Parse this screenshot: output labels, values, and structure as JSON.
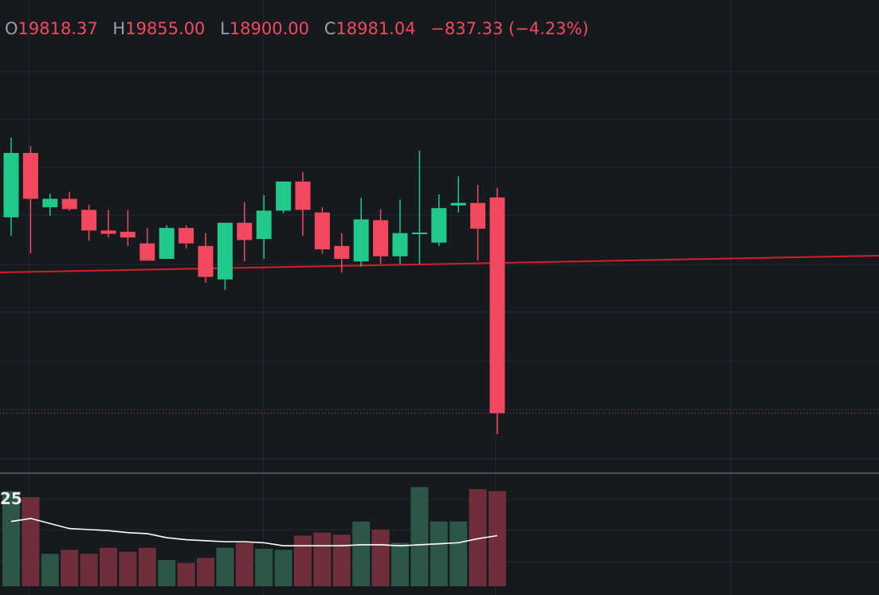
{
  "legend": {
    "open_key": "O",
    "open": "19818.37",
    "high_key": "H",
    "high": "19855.00",
    "low_key": "L",
    "low": "18900.00",
    "close_key": "C",
    "close": "18981.04",
    "change": "−837.33 (−4.23%)"
  },
  "volume_label": "25",
  "colors": {
    "background": "#161a1f",
    "grid": "#232730",
    "up": "#22c98a",
    "down": "#f2495e",
    "up_volume": "#2c5646",
    "down_volume": "#6e2f3a",
    "trendline": "#d61f24",
    "last_price_line": "#f2495e",
    "volume_ma": "#ffffff",
    "separator": "#5b606a"
  },
  "chart_data": {
    "type": "candlestick",
    "price_range": [
      18850,
      20100
    ],
    "candles": [
      {
        "o": 19741,
        "h": 20050,
        "l": 19670,
        "c": 19991,
        "v": 94
      },
      {
        "o": 19991,
        "h": 20017,
        "l": 19601,
        "c": 19813,
        "v": 88
      },
      {
        "o": 19780,
        "h": 19833,
        "l": 19747,
        "c": 19813,
        "v": 32
      },
      {
        "o": 19813,
        "h": 19840,
        "l": 19767,
        "c": 19773,
        "v": 36
      },
      {
        "o": 19770,
        "h": 19790,
        "l": 19650,
        "c": 19690,
        "v": 32
      },
      {
        "o": 19690,
        "h": 19770,
        "l": 19663,
        "c": 19677,
        "v": 38
      },
      {
        "o": 19685,
        "h": 19770,
        "l": 19630,
        "c": 19663,
        "v": 34
      },
      {
        "o": 19640,
        "h": 19700,
        "l": 19580,
        "c": 19573,
        "v": 38
      },
      {
        "o": 19580,
        "h": 19710,
        "l": 19580,
        "c": 19700,
        "v": 26
      },
      {
        "o": 19700,
        "h": 19710,
        "l": 19620,
        "c": 19640,
        "v": 23
      },
      {
        "o": 19630,
        "h": 19680,
        "l": 19487,
        "c": 19510,
        "v": 28
      },
      {
        "o": 19500,
        "h": 19720,
        "l": 19460,
        "c": 19720,
        "v": 38
      },
      {
        "o": 19720,
        "h": 19800,
        "l": 19570,
        "c": 19653,
        "v": 43
      },
      {
        "o": 19657,
        "h": 19827,
        "l": 19580,
        "c": 19767,
        "v": 37
      },
      {
        "o": 19767,
        "h": 19880,
        "l": 19757,
        "c": 19880,
        "v": 36
      },
      {
        "o": 19880,
        "h": 19917,
        "l": 19670,
        "c": 19770,
        "v": 50
      },
      {
        "o": 19760,
        "h": 19780,
        "l": 19600,
        "c": 19617,
        "v": 53
      },
      {
        "o": 19630,
        "h": 19680,
        "l": 19527,
        "c": 19580,
        "v": 51
      },
      {
        "o": 19570,
        "h": 19817,
        "l": 19550,
        "c": 19733,
        "v": 64
      },
      {
        "o": 19730,
        "h": 19773,
        "l": 19560,
        "c": 19590,
        "v": 56
      },
      {
        "o": 19590,
        "h": 19810,
        "l": 19560,
        "c": 19680,
        "v": 43
      },
      {
        "o": 19680,
        "h": 20000,
        "l": 19560,
        "c": 19682,
        "v": 98
      },
      {
        "o": 19643,
        "h": 19830,
        "l": 19630,
        "c": 19777,
        "v": 64
      },
      {
        "o": 19787,
        "h": 19900,
        "l": 19760,
        "c": 19797,
        "v": 64
      },
      {
        "o": 19797,
        "h": 19867,
        "l": 19573,
        "c": 19697,
        "v": 96
      },
      {
        "o": 19818.37,
        "h": 19855,
        "l": 18900,
        "c": 18981.04,
        "v": 94
      }
    ],
    "volume_ma": [
      64,
      67,
      62,
      57,
      56,
      55,
      53,
      52,
      48,
      46,
      45,
      44,
      44,
      43,
      40,
      40,
      40,
      40,
      41,
      41,
      40,
      41,
      42,
      43,
      47,
      50
    ],
    "volume_range": [
      0,
      100
    ],
    "trendline": {
      "from": [
        0,
        19440
      ],
      "to": [
        44.5,
        19500
      ]
    },
    "last_price": 18981.04,
    "grid": true
  }
}
